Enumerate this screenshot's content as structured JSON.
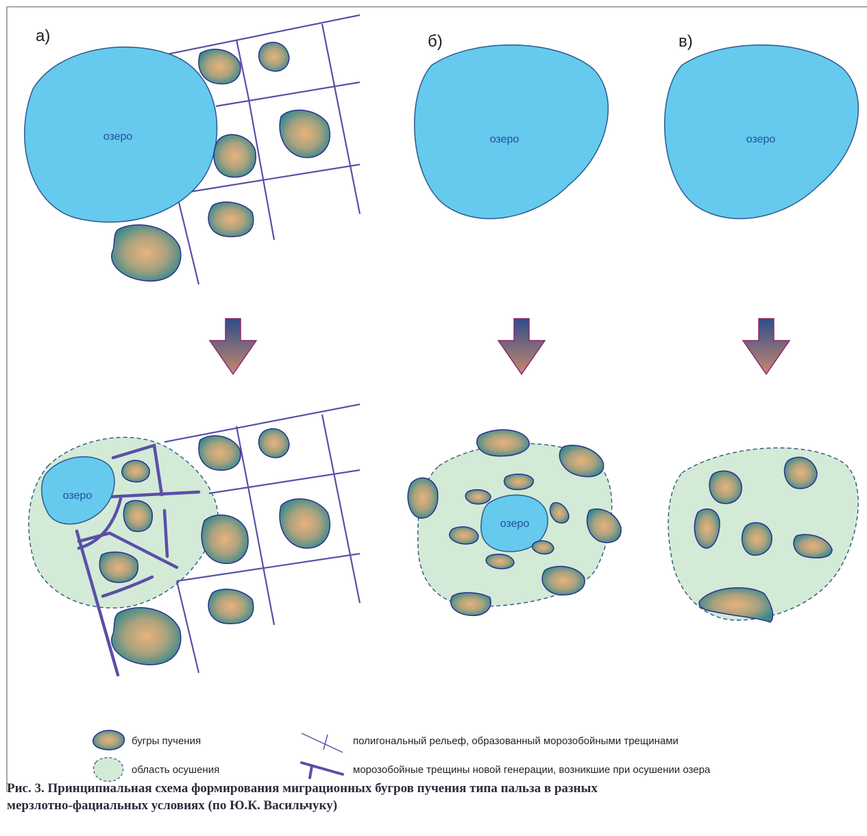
{
  "panels": {
    "a": {
      "label": "а)",
      "lake": "озеро",
      "lake_after": "озеро"
    },
    "b": {
      "label": "б)",
      "lake": "озеро",
      "lake_after": "озеро"
    },
    "c": {
      "label": "в)",
      "lake": "озеро"
    }
  },
  "legend": {
    "mound": "бугры пучения",
    "drained_area": "область осушения",
    "polygon_relief": "полигональный рельеф, образованный морозобойными трещинами",
    "new_cracks": "морозобойные трещины новой генерации, возникшие при осушении озера"
  },
  "caption": {
    "line1": "Рис. 3. Принципиальная схема формирования миграционных бугров пучения типа пальза в разных",
    "line2": "мерзлотно-фациальных условиях (по Ю.К. Васильчуку)"
  },
  "colors": {
    "lake_fill": "#66c9ee",
    "lake_stroke": "#2a5a8c",
    "lake_text": "#1f4f9e",
    "drained_fill": "#d3ead7",
    "drained_stroke": "#2c5580",
    "polygon_line": "#5a4fa8",
    "mound_center": "#e9b07a",
    "mound_edge": "#3b8a8c",
    "mound_stroke": "#2b2f8a",
    "arrow_top": "#2d4d8a",
    "arrow_bottom": "#c9876f",
    "arrow_stroke": "#8a2a6a"
  }
}
